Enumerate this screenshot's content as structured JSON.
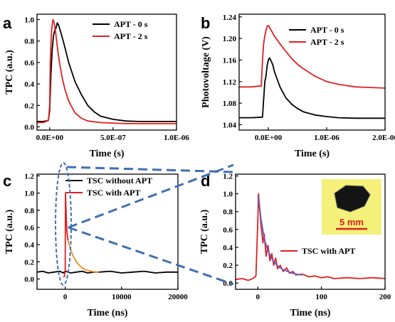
{
  "chart_data": [
    {
      "id": "a",
      "type": "line",
      "panel_label": "a",
      "xlabel": "Time (s)",
      "ylabel": "TPC (a.u.)",
      "xlim": [
        -1e-07,
        1e-06
      ],
      "ylim": [
        -0.03,
        1.05
      ],
      "xticks": [
        0,
        5e-07,
        1e-06
      ],
      "xtick_labels": [
        "0.0E+00",
        "5.0E-07",
        "1.0E-06"
      ],
      "yticks": [
        0.0,
        0.2,
        0.4,
        0.6,
        0.8,
        1.0
      ],
      "ytick_labels": [
        "0.0",
        "0.2",
        "0.4",
        "0.6",
        "0.8",
        "1.0"
      ],
      "legend_position": "top-right",
      "series": [
        {
          "name": "APT - 0 s",
          "color": "#000000",
          "x": [
            -1e-07,
            -5e-08,
            -1e-08,
            0,
            1e-08,
            2e-08,
            3e-08,
            4e-08,
            5e-08,
            6e-08,
            7e-08,
            8e-08,
            1e-07,
            1.2e-07,
            1.5e-07,
            2e-07,
            2.5e-07,
            3e-07,
            3.5e-07,
            4e-07,
            5e-07,
            6e-07,
            7e-07,
            8e-07,
            9e-07,
            1e-06
          ],
          "y": [
            0.05,
            0.05,
            0.06,
            0.15,
            0.5,
            0.72,
            0.85,
            0.9,
            0.92,
            0.97,
            0.95,
            0.91,
            0.83,
            0.74,
            0.6,
            0.42,
            0.3,
            0.2,
            0.14,
            0.1,
            0.07,
            0.055,
            0.05,
            0.05,
            0.05,
            0.05
          ]
        },
        {
          "name": "APT - 2 s",
          "color": "#e02020",
          "x": [
            -1e-07,
            -5e-08,
            -1e-08,
            0,
            5e-09,
            1.5e-08,
            2.5e-08,
            3.5e-08,
            4.5e-08,
            5.5e-08,
            6.5e-08,
            8e-08,
            1e-07,
            1.2e-07,
            1.5e-07,
            2e-07,
            2.5e-07,
            3e-07,
            4e-07,
            5e-07,
            6e-07,
            7e-07,
            8e-07,
            9e-07,
            1e-06
          ],
          "y": [
            0.04,
            0.04,
            0.06,
            0.2,
            0.62,
            0.9,
            1.0,
            0.97,
            0.9,
            0.8,
            0.7,
            0.58,
            0.45,
            0.35,
            0.24,
            0.13,
            0.08,
            0.055,
            0.04,
            0.035,
            0.03,
            0.03,
            0.03,
            0.03,
            0.03
          ]
        }
      ]
    },
    {
      "id": "b",
      "type": "line",
      "panel_label": "b",
      "xlabel": "Time (s)",
      "ylabel": "Photovoltage (V)",
      "xlim": [
        -5e-07,
        2e-06
      ],
      "ylim": [
        1.03,
        1.245
      ],
      "xticks": [
        0,
        1e-06,
        2e-06
      ],
      "xtick_labels": [
        "0.0E+00",
        "1.0E-06",
        "2.0E-06"
      ],
      "yticks": [
        1.04,
        1.08,
        1.12,
        1.16,
        1.2,
        1.24
      ],
      "ytick_labels": [
        "1.04",
        "1.08",
        "1.12",
        "1.16",
        "1.20",
        "1.24"
      ],
      "legend_position": "top-right",
      "series": [
        {
          "name": "APT - 0 s",
          "color": "#000000",
          "x": [
            -5e-07,
            -3e-07,
            -1e-07,
            -6e-08,
            -4e-08,
            -2e-08,
            0,
            2e-08,
            5e-08,
            8e-08,
            1e-07,
            1.5e-07,
            2e-07,
            3e-07,
            4e-07,
            5e-07,
            6e-07,
            8e-07,
            1e-06,
            1.2e-06,
            1.5e-06,
            2e-06
          ],
          "y": [
            1.053,
            1.053,
            1.054,
            1.12,
            1.13,
            1.15,
            1.16,
            1.164,
            1.158,
            1.15,
            1.14,
            1.125,
            1.11,
            1.09,
            1.078,
            1.07,
            1.064,
            1.058,
            1.055,
            1.053,
            1.052,
            1.052
          ]
        },
        {
          "name": "APT - 2 s",
          "color": "#e02020",
          "x": [
            -5e-07,
            -3e-07,
            -1.2e-07,
            -1e-07,
            -8e-08,
            -6e-08,
            -4e-08,
            -2e-08,
            0,
            5e-08,
            1e-07,
            2e-07,
            3e-07,
            4e-07,
            5e-07,
            6e-07,
            8e-07,
            1e-06,
            1.2e-06,
            1.5e-06,
            2e-06
          ],
          "y": [
            1.11,
            1.11,
            1.112,
            1.16,
            1.19,
            1.205,
            1.215,
            1.223,
            1.224,
            1.215,
            1.205,
            1.19,
            1.176,
            1.163,
            1.152,
            1.144,
            1.13,
            1.12,
            1.115,
            1.11,
            1.108
          ]
        }
      ]
    },
    {
      "id": "c",
      "type": "line",
      "panel_label": "c",
      "xlabel": "Time (ns)",
      "ylabel": "TPC (a.u.)",
      "xlim": [
        -5000,
        20000
      ],
      "ylim": [
        -0.12,
        1.22
      ],
      "xticks": [
        0,
        10000,
        20000
      ],
      "xtick_labels": [
        "0",
        "10000",
        "20000"
      ],
      "yticks": [
        0.0,
        0.2,
        0.4,
        0.6,
        0.8,
        1.0,
        1.2
      ],
      "ytick_labels": [
        "0.0",
        "0.2",
        "0.4",
        "0.6",
        "0.8",
        "1.0",
        "1.2"
      ],
      "legend_position": "top-right",
      "series": [
        {
          "name": "TSC without APT",
          "color": "#000000",
          "x": [
            -5000,
            -4000,
            -3000,
            -2000,
            -1000,
            -300,
            0,
            500,
            1000,
            2000,
            3000,
            4000,
            5000,
            6000,
            8000,
            10000,
            12000,
            14000,
            16000,
            18000,
            20000
          ],
          "y": [
            0.08,
            0.09,
            0.07,
            0.08,
            0.09,
            0.07,
            0.09,
            0.08,
            0.07,
            0.08,
            0.09,
            0.07,
            0.08,
            0.08,
            0.09,
            0.07,
            0.08,
            0.09,
            0.07,
            0.08,
            0.08
          ]
        },
        {
          "name": "TSC with APT",
          "color": "#e02020",
          "x": [
            -300,
            -150,
            0,
            50,
            100,
            200,
            300,
            500
          ],
          "y": [
            0.02,
            0.03,
            0.1,
            1.0,
            0.9,
            0.7,
            0.55,
            0.45
          ]
        },
        {
          "name": "",
          "color": "#f08c1e",
          "x": [
            500,
            800,
            1200,
            1600,
            2000,
            2500,
            3000,
            3500,
            4000,
            4500,
            5000,
            5500,
            6000
          ],
          "y": [
            0.45,
            0.38,
            0.3,
            0.24,
            0.2,
            0.16,
            0.13,
            0.11,
            0.1,
            0.09,
            0.085,
            0.08,
            0.08
          ]
        }
      ]
    },
    {
      "id": "d",
      "type": "line",
      "panel_label": "d",
      "xlabel": "Time (ns)",
      "ylabel": "TPC (a.u.)",
      "xlim": [
        -35,
        200
      ],
      "ylim": [
        -0.07,
        1.22
      ],
      "xticks": [
        0,
        100,
        200
      ],
      "xtick_labels": [
        "0",
        "100",
        "200"
      ],
      "yticks": [
        0.0,
        0.2,
        0.4,
        0.6,
        0.8,
        1.0,
        1.2
      ],
      "ytick_labels": [
        "0.0",
        "0.2",
        "0.4",
        "0.6",
        "0.8",
        "1.0",
        "1.2"
      ],
      "legend_position": "bottom-right",
      "inset_scale_label": "5 mm",
      "series": [
        {
          "name": "TSC with APT",
          "color": "#e02020",
          "x": [
            -35,
            -25,
            -15,
            -8,
            -3,
            0,
            1,
            3,
            5,
            8,
            10,
            13,
            16,
            19,
            22,
            25,
            28,
            31,
            35,
            40,
            45,
            50,
            55,
            60,
            70,
            80,
            90,
            100,
            110,
            120,
            140,
            160,
            180,
            200
          ],
          "y": [
            0.04,
            0.05,
            0.03,
            0.05,
            0.08,
            0.7,
            1.0,
            0.82,
            0.65,
            0.45,
            0.55,
            0.3,
            0.42,
            0.25,
            0.33,
            0.2,
            0.28,
            0.16,
            0.2,
            0.13,
            0.17,
            0.11,
            0.13,
            0.09,
            0.1,
            0.07,
            0.08,
            0.06,
            0.07,
            0.05,
            0.06,
            0.05,
            0.06,
            0.05
          ]
        },
        {
          "name": "",
          "color": "#5b5fc7",
          "x": [
            0,
            2,
            5,
            10,
            15,
            20,
            25,
            30,
            35,
            40,
            50,
            60,
            70
          ],
          "y": [
            0.98,
            0.9,
            0.72,
            0.5,
            0.38,
            0.3,
            0.24,
            0.2,
            0.17,
            0.15,
            0.12,
            0.1,
            0.09
          ]
        }
      ]
    }
  ]
}
